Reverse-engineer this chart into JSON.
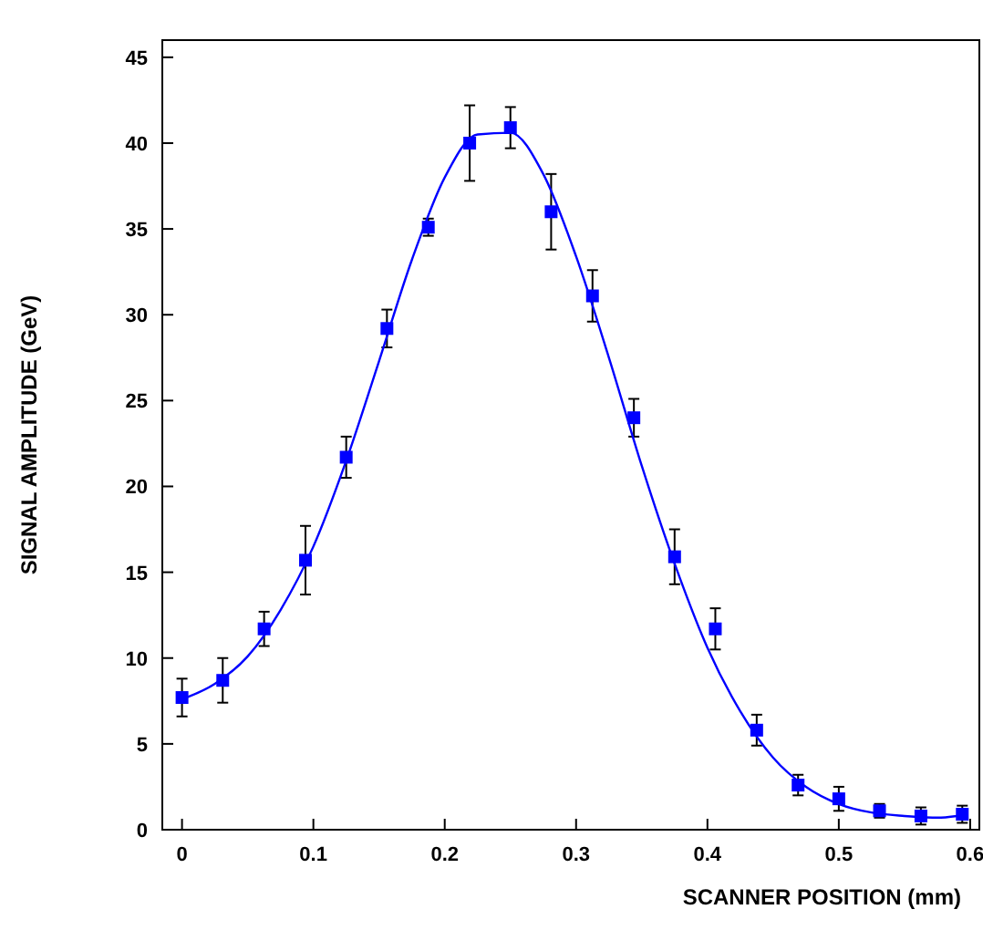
{
  "chart_data": {
    "type": "scatter",
    "xlabel": "SCANNER POSITION (mm)",
    "ylabel": "SIGNAL AMPLITUDE (GeV)",
    "xlim": [
      -0.015,
      0.607
    ],
    "ylim": [
      0,
      46
    ],
    "xticks": [
      0,
      0.1,
      0.2,
      0.3,
      0.4,
      0.5,
      0.6
    ],
    "yticks": [
      0,
      5,
      10,
      15,
      20,
      25,
      30,
      35,
      40,
      45
    ],
    "grid": false,
    "series": [
      {
        "color": "#0000ff",
        "marker": "square",
        "x": [
          0,
          0.031,
          0.0625,
          0.094,
          0.125,
          0.156,
          0.1875,
          0.219,
          0.25,
          0.281,
          0.3125,
          0.344,
          0.375,
          0.406,
          0.4375,
          0.469,
          0.5,
          0.531,
          0.5625,
          0.594
        ],
        "values": [
          7.7,
          8.7,
          11.7,
          15.7,
          21.7,
          29.2,
          35.1,
          40.0,
          40.9,
          36.0,
          31.1,
          24.0,
          15.9,
          11.7,
          5.8,
          2.6,
          1.8,
          1.1,
          0.8,
          0.9
        ],
        "errors": [
          1.1,
          1.3,
          1.0,
          2.0,
          1.2,
          1.1,
          0.5,
          2.2,
          1.2,
          2.2,
          1.5,
          1.1,
          1.6,
          1.2,
          0.9,
          0.6,
          0.7,
          0.4,
          0.5,
          0.5
        ]
      },
      {
        "type": "line",
        "color": "#0000ff",
        "line_style": "solid",
        "x": [
          0,
          0.025,
          0.05,
          0.075,
          0.1,
          0.125,
          0.15,
          0.175,
          0.2,
          0.225,
          0.25,
          0.275,
          0.3,
          0.325,
          0.35,
          0.375,
          0.4,
          0.425,
          0.45,
          0.475,
          0.5,
          0.525,
          0.55,
          0.575,
          0.59
        ],
        "values": [
          7.6,
          8.5,
          10.1,
          12.8,
          16.5,
          21.5,
          27.3,
          33.2,
          38.0,
          40.5,
          40.6,
          38.2,
          33.4,
          27.5,
          21.2,
          15.5,
          10.6,
          6.9,
          4.2,
          2.5,
          1.5,
          1.0,
          0.8,
          0.7,
          0.8
        ]
      }
    ]
  }
}
